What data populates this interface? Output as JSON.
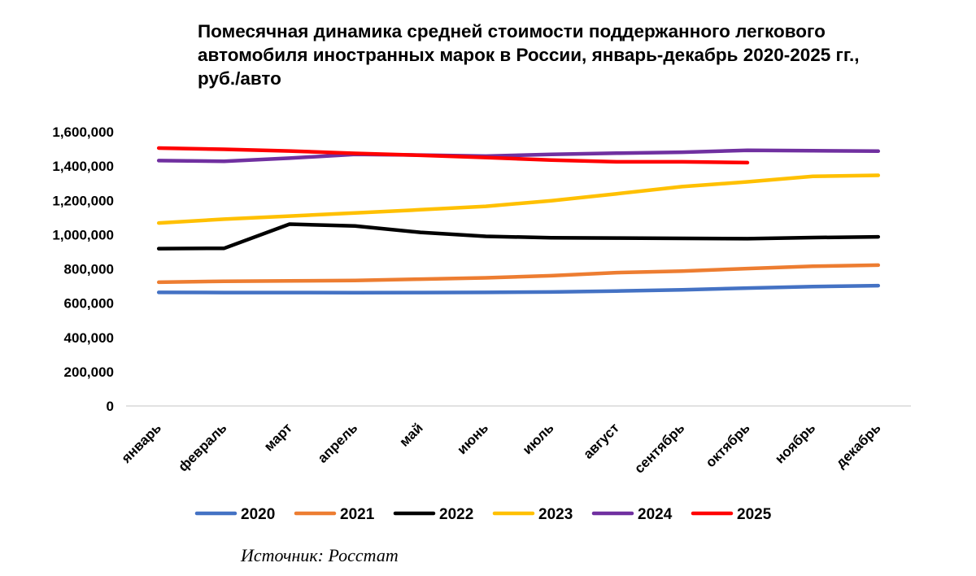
{
  "chart_data": {
    "type": "line",
    "title_lines": [
      "Помесячная динамика средней стоимости поддержанного легкового",
      "автомобиля иностранных марок в России, январь-декабрь 2020-2025 гг.,",
      "руб./авто"
    ],
    "categories": [
      "январь",
      "февраль",
      "март",
      "апрель",
      "май",
      "июнь",
      "июль",
      "август",
      "сентябрь",
      "октябрь",
      "ноябрь",
      "декабрь"
    ],
    "y_ticks": [
      "0",
      "200,000",
      "400,000",
      "600,000",
      "800,000",
      "1,000,000",
      "1,200,000",
      "1,400,000",
      "1,600,000"
    ],
    "ylim": [
      0,
      1600000
    ],
    "xlabel": "",
    "ylabel": "",
    "grid": false,
    "legend_position": "bottom",
    "series": [
      {
        "name": "2020",
        "color": "#4472C4",
        "values": [
          663000,
          662000,
          662000,
          661000,
          662000,
          663000,
          665000,
          671000,
          678000,
          688000,
          697000,
          702000
        ]
      },
      {
        "name": "2021",
        "color": "#ED7D31",
        "values": [
          722000,
          728000,
          730000,
          732000,
          740000,
          748000,
          760000,
          778000,
          787000,
          802000,
          815000,
          822000
        ]
      },
      {
        "name": "2022",
        "color": "#000000",
        "values": [
          918000,
          920000,
          1061000,
          1050000,
          1013000,
          990000,
          982000,
          980000,
          978000,
          976000,
          983000,
          987000
        ]
      },
      {
        "name": "2023",
        "color": "#FFC000",
        "values": [
          1068000,
          1090000,
          1108000,
          1126000,
          1145000,
          1165000,
          1198000,
          1238000,
          1280000,
          1308000,
          1340000,
          1346000
        ]
      },
      {
        "name": "2024",
        "color": "#7030A0",
        "values": [
          1432000,
          1428000,
          1446000,
          1468000,
          1464000,
          1458000,
          1468000,
          1475000,
          1481000,
          1492000,
          1490000,
          1487000
        ]
      },
      {
        "name": "2025",
        "color": "#FF0000",
        "values": [
          1505000,
          1498000,
          1488000,
          1474000,
          1463000,
          1450000,
          1435000,
          1425000,
          1425000,
          1420000,
          null,
          null
        ]
      }
    ]
  },
  "source_note": "Источник: Росстат"
}
